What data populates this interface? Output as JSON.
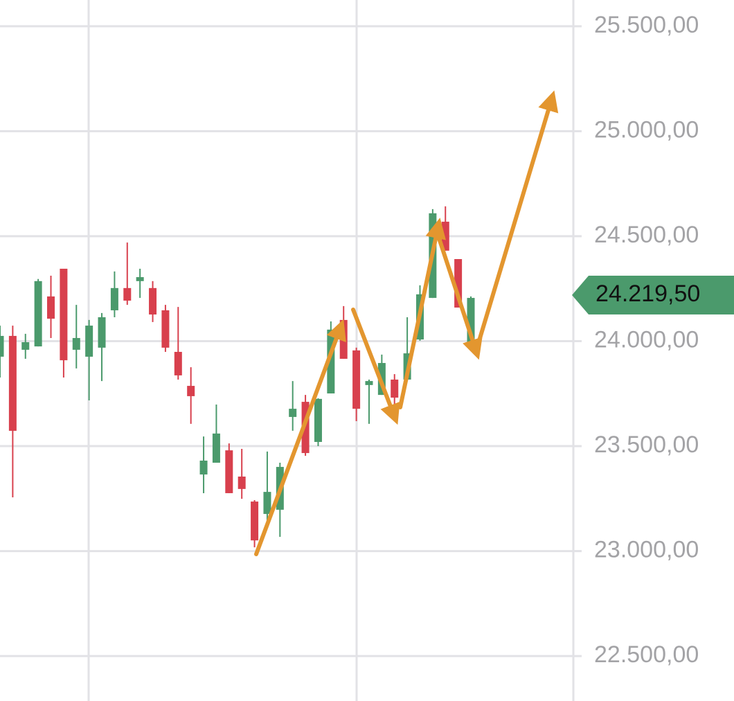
{
  "chart_data": {
    "type": "candlestick",
    "categories": [
      null,
      null,
      null,
      null,
      null,
      null,
      null,
      null,
      null,
      null,
      null,
      null,
      null,
      null,
      null,
      null,
      null,
      null,
      null,
      null,
      null,
      null,
      null,
      null,
      null,
      null,
      null,
      null,
      null,
      null,
      null,
      null,
      null,
      null,
      null,
      null,
      null,
      null
    ],
    "open": [
      23926,
      24025,
      23959,
      23975,
      24213,
      24345,
      23959,
      23926,
      23969,
      24147,
      24253,
      24286,
      24253,
      24147,
      23949,
      23787,
      23365,
      23421,
      23480,
      23355,
      23236,
      23177,
      23197,
      23639,
      23711,
      23520,
      23751,
      24101,
      23956,
      23791,
      23744,
      23817,
      23817,
      24008,
      24206,
      24569,
      24391,
      23992
    ],
    "high": [
      24074,
      24074,
      24035,
      24296,
      24312,
      24345,
      24173,
      24101,
      24134,
      24332,
      24470,
      24345,
      24286,
      24173,
      24163,
      23876,
      23546,
      23698,
      23513,
      23487,
      23243,
      23474,
      23421,
      23810,
      23744,
      23728,
      24094,
      24167,
      23969,
      23817,
      23936,
      23843,
      24114,
      24266,
      24629,
      24642,
      24391,
      24213
    ],
    "low": [
      23827,
      23256,
      23916,
      23975,
      24015,
      23827,
      23870,
      23718,
      23810,
      24114,
      24173,
      24206,
      24091,
      23949,
      23817,
      23606,
      23276,
      23421,
      23276,
      23249,
      23018,
      23117,
      23068,
      23573,
      23454,
      23500,
      23751,
      23916,
      23619,
      23606,
      23744,
      23678,
      23810,
      24002,
      24206,
      24431,
      24160,
      23975
    ],
    "close": [
      24025,
      23573,
      23995,
      24286,
      24107,
      23909,
      24015,
      24074,
      24114,
      24253,
      24193,
      24305,
      24127,
      23969,
      23837,
      23738,
      23431,
      23560,
      23276,
      23296,
      23051,
      23282,
      23401,
      23678,
      23467,
      23725,
      24055,
      23916,
      23678,
      23810,
      23896,
      23731,
      23942,
      24223,
      24609,
      24431,
      24160,
      24206
    ],
    "up_color": "#4b9a6c",
    "down_color": "#d8404d",
    "ylim": [
      22286,
      25625
    ],
    "yticks": [
      {
        "value": 22500,
        "label": "22.500,00"
      },
      {
        "value": 23000,
        "label": "23.000,00"
      },
      {
        "value": 23500,
        "label": "23.500,00"
      },
      {
        "value": 24000,
        "label": "24.000,00"
      },
      {
        "value": 24500,
        "label": "24.500,00"
      },
      {
        "value": 25000,
        "label": "25.000,00"
      },
      {
        "value": 25500,
        "label": "25.500,00"
      }
    ],
    "last_price": {
      "value": 24219.5,
      "label": "24.219,50"
    },
    "grid": true
  }
}
